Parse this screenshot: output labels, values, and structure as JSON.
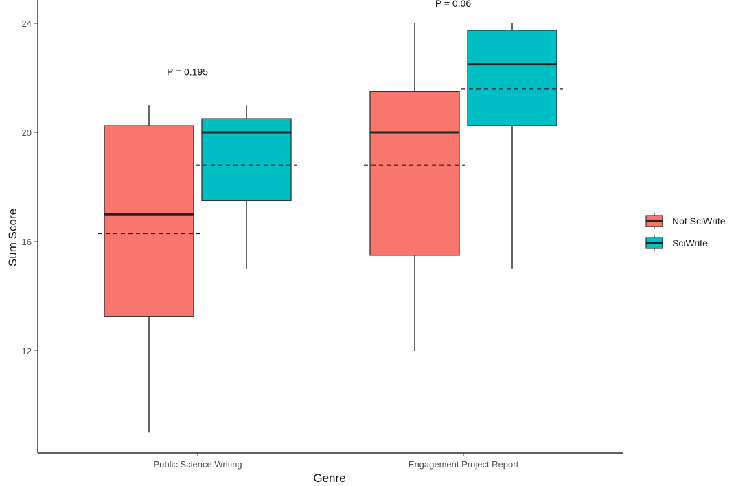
{
  "chart_data": {
    "type": "box",
    "xlabel": "Genre",
    "ylabel": "Sum Score",
    "ylim": [
      8.5,
      24.6
    ],
    "yticks": [
      12,
      16,
      20,
      24
    ],
    "categories": [
      "Public Science Writing",
      "Engagement Project Report"
    ],
    "grid": false,
    "legend_position": "right",
    "series": [
      {
        "name": "Not SciWrite",
        "color": "#F8766D",
        "boxes": [
          {
            "category": "Public Science Writing",
            "min": 9,
            "q1": 13.25,
            "median": 17,
            "q3": 20.25,
            "max": 21,
            "mean": 16.3
          },
          {
            "category": "Engagement Project Report",
            "min": 12,
            "q1": 15.5,
            "median": 20,
            "q3": 21.5,
            "max": 24,
            "mean": 18.8
          }
        ]
      },
      {
        "name": "SciWrite",
        "color": "#00BFC4",
        "boxes": [
          {
            "category": "Public Science Writing",
            "min": 15,
            "q1": 17.5,
            "median": 20,
            "q3": 20.5,
            "max": 21,
            "mean": 18.8
          },
          {
            "category": "Engagement Project Report",
            "min": 15,
            "q1": 20.25,
            "median": 22.5,
            "q3": 23.75,
            "max": 24,
            "mean": 21.6
          }
        ]
      }
    ],
    "annotations": [
      {
        "category": "Public Science Writing",
        "text": "P = 0.195",
        "y": 22.1
      },
      {
        "category": "Engagement Project Report",
        "text": "P = 0.06",
        "y": 24.6
      }
    ]
  }
}
